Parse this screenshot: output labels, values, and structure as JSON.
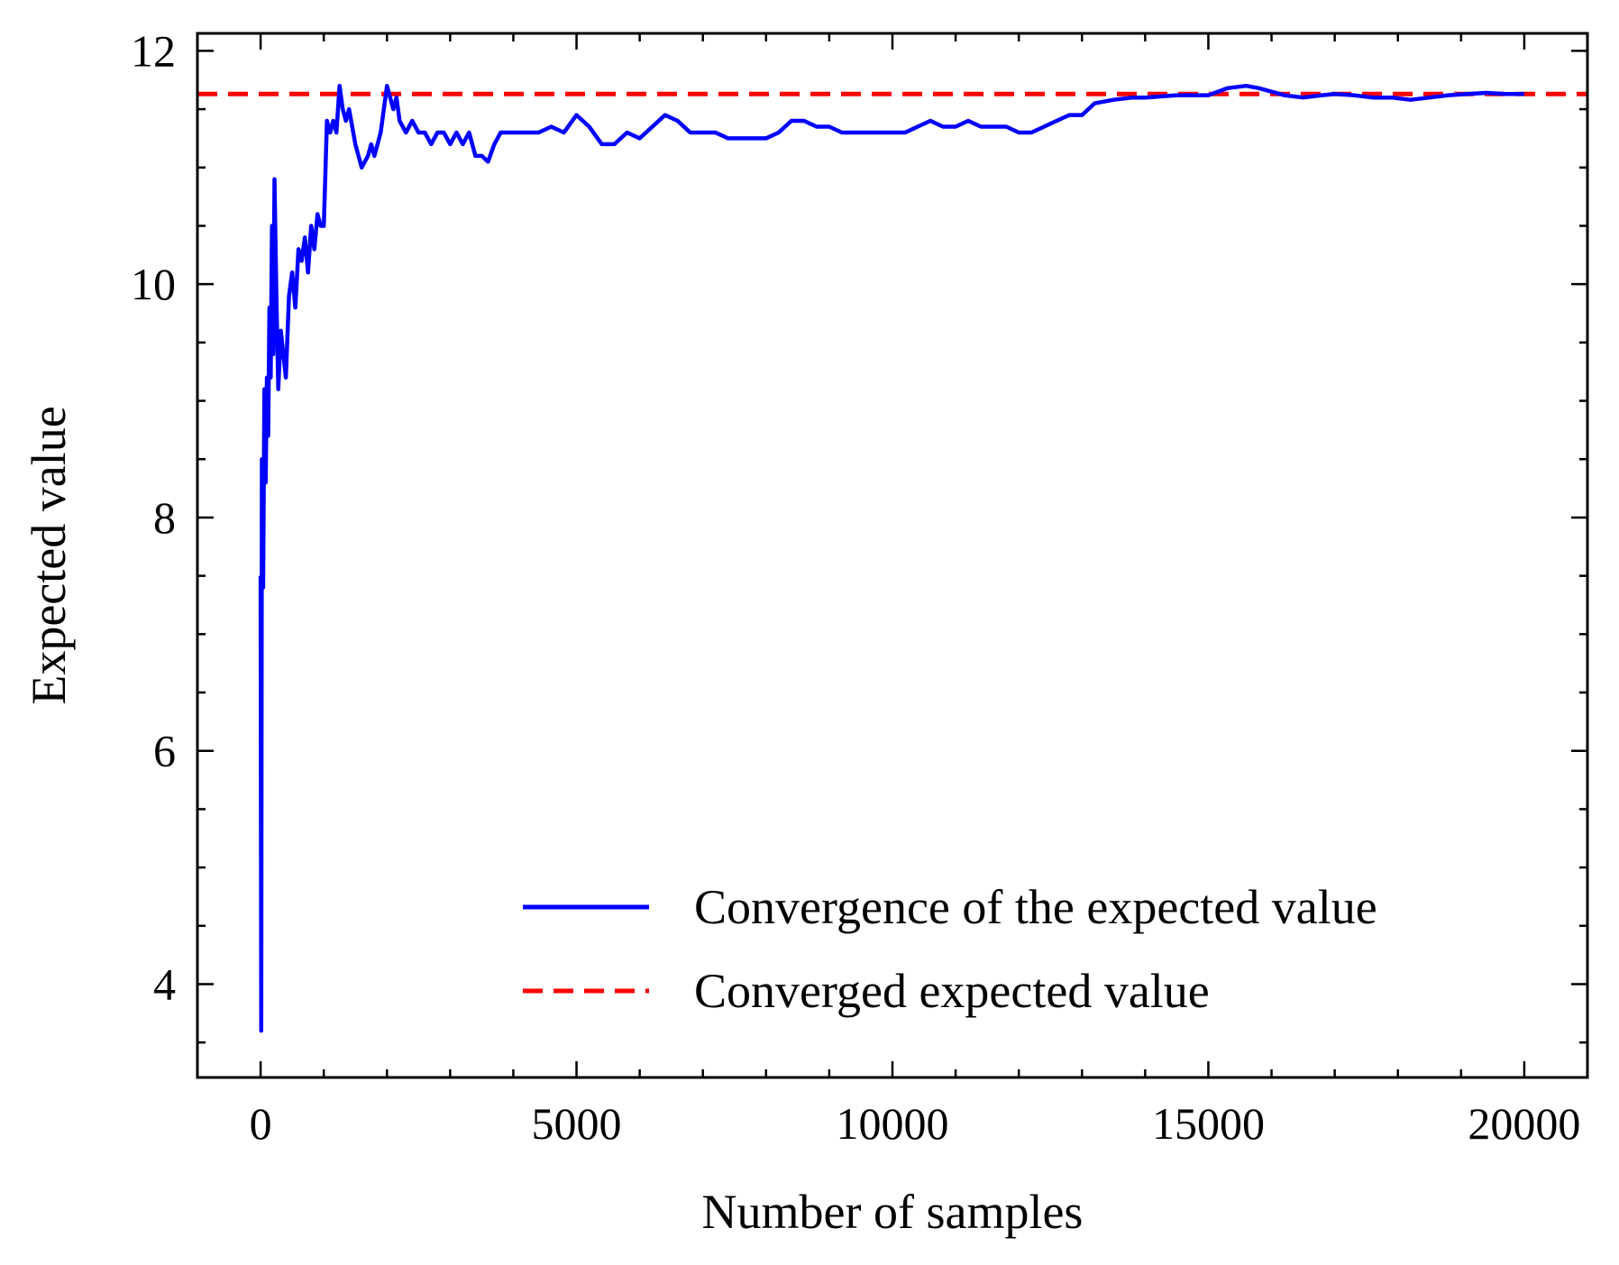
{
  "chart_data": {
    "type": "line",
    "xlabel": "Number of samples",
    "ylabel": "Expected value",
    "xlim": [
      -1000,
      21000
    ],
    "ylim": [
      3.2,
      12.15
    ],
    "x_ticks": [
      0,
      5000,
      10000,
      15000,
      20000
    ],
    "x_tick_labels": [
      "0",
      "5000",
      "10000",
      "15000",
      "20000"
    ],
    "y_ticks": [
      4,
      6,
      8,
      10,
      12
    ],
    "y_tick_labels": [
      "4",
      "6",
      "8",
      "10",
      "12"
    ],
    "grid": false,
    "legend_position": "bottom-right",
    "series": [
      {
        "name": "Convergence of the expected value",
        "color": "#0000ff",
        "style": "solid",
        "x": [
          0,
          10,
          20,
          40,
          60,
          80,
          100,
          120,
          140,
          160,
          180,
          200,
          220,
          250,
          280,
          320,
          360,
          400,
          450,
          500,
          550,
          600,
          650,
          700,
          750,
          800,
          850,
          900,
          950,
          1000,
          1050,
          1100,
          1150,
          1200,
          1250,
          1300,
          1350,
          1400,
          1500,
          1600,
          1700,
          1750,
          1800,
          1900,
          2000,
          2100,
          2150,
          2200,
          2300,
          2400,
          2500,
          2600,
          2700,
          2800,
          2900,
          3000,
          3100,
          3200,
          3300,
          3400,
          3500,
          3600,
          3700,
          3800,
          3900,
          4000,
          4200,
          4400,
          4600,
          4800,
          5000,
          5200,
          5400,
          5600,
          5800,
          6000,
          6200,
          6400,
          6600,
          6800,
          7000,
          7200,
          7400,
          7600,
          7800,
          8000,
          8200,
          8400,
          8600,
          8800,
          9000,
          9200,
          9400,
          9600,
          9800,
          10000,
          10200,
          10400,
          10600,
          10800,
          11000,
          11200,
          11400,
          11600,
          11800,
          12000,
          12200,
          12400,
          12600,
          12800,
          13000,
          13200,
          13500,
          13800,
          14000,
          14500,
          15000,
          15300,
          15600,
          15800,
          16000,
          16200,
          16500,
          16800,
          17000,
          17300,
          17600,
          17900,
          18200,
          18500,
          18800,
          19100,
          19400,
          19700,
          20000
        ],
        "values": [
          7.5,
          3.6,
          8.5,
          7.4,
          9.1,
          8.3,
          9.2,
          8.7,
          9.8,
          9.2,
          10.5,
          9.4,
          10.9,
          9.9,
          9.1,
          9.6,
          9.4,
          9.2,
          9.9,
          10.1,
          9.8,
          10.3,
          10.2,
          10.4,
          10.1,
          10.5,
          10.3,
          10.6,
          10.5,
          10.5,
          11.4,
          11.3,
          11.4,
          11.3,
          11.7,
          11.5,
          11.4,
          11.5,
          11.2,
          11.0,
          11.1,
          11.2,
          11.1,
          11.3,
          11.7,
          11.5,
          11.6,
          11.4,
          11.3,
          11.4,
          11.3,
          11.3,
          11.2,
          11.3,
          11.3,
          11.2,
          11.3,
          11.2,
          11.3,
          11.1,
          11.1,
          11.05,
          11.2,
          11.3,
          11.3,
          11.3,
          11.3,
          11.3,
          11.35,
          11.3,
          11.45,
          11.35,
          11.2,
          11.2,
          11.3,
          11.25,
          11.35,
          11.45,
          11.4,
          11.3,
          11.3,
          11.3,
          11.25,
          11.25,
          11.25,
          11.25,
          11.3,
          11.4,
          11.4,
          11.35,
          11.35,
          11.3,
          11.3,
          11.3,
          11.3,
          11.3,
          11.3,
          11.35,
          11.4,
          11.35,
          11.35,
          11.4,
          11.35,
          11.35,
          11.35,
          11.3,
          11.3,
          11.35,
          11.4,
          11.45,
          11.45,
          11.55,
          11.58,
          11.6,
          11.6,
          11.62,
          11.62,
          11.68,
          11.7,
          11.68,
          11.65,
          11.62,
          11.6,
          11.62,
          11.63,
          11.62,
          11.6,
          11.6,
          11.58,
          11.6,
          11.62,
          11.63,
          11.64,
          11.63,
          11.63
        ]
      },
      {
        "name": "Converged expected value",
        "color": "#ff0000",
        "style": "dashed",
        "y": 11.63
      }
    ]
  }
}
